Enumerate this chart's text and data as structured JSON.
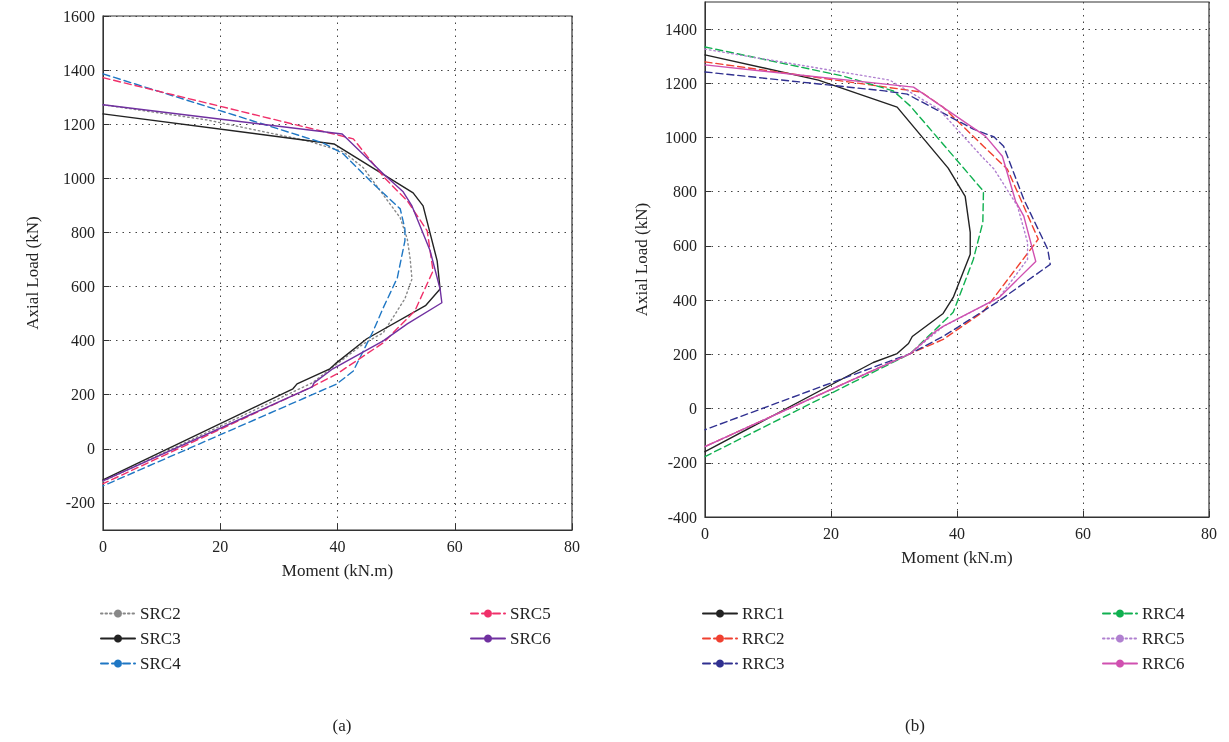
{
  "chart_data": [
    {
      "type": "line",
      "xlabel": "Moment (kN.m)",
      "ylabel": "Axial Load (kN)",
      "xlim": [
        0,
        80
      ],
      "xticks": [
        0,
        20,
        40,
        60,
        80
      ],
      "ylim": [
        -300,
        1600
      ],
      "yticks": [
        -200,
        0,
        200,
        400,
        600,
        800,
        1000,
        1200,
        1400,
        1600
      ],
      "grid": true,
      "legend": "bottom",
      "marker": "none",
      "annotations": [
        "(a)"
      ],
      "series": [
        {
          "name": "SRC2",
          "color": "#888888",
          "line_style": "dotted",
          "x": [
            0,
            17.7,
            34.8,
            41,
            44.4,
            50.7,
            51.9,
            52.4,
            52.7,
            51.5,
            47.8,
            44.4,
            35.7,
            0
          ],
          "values": [
            1272,
            1216,
            1139,
            1098,
            1039,
            854,
            776,
            702,
            628,
            555,
            429,
            388,
            244,
            -120
          ]
        },
        {
          "name": "SRC3",
          "color": "#222222",
          "line_style": "solid",
          "x": [
            0,
            39.4,
            52.9,
            54.6,
            57,
            57.5,
            55,
            45,
            39.6,
            38.7,
            33.1,
            32.4,
            0
          ],
          "values": [
            1238,
            1127,
            946,
            898,
            695,
            591,
            529,
            407,
            314,
            296,
            240,
            222,
            -115
          ]
        },
        {
          "name": "SRC4",
          "color": "#1f77c4",
          "line_style": "dashed",
          "x": [
            0,
            37.5,
            41,
            46.1,
            50.7,
            51.5,
            51.5,
            50.2,
            47.8,
            46.1,
            42.7,
            39.9,
            0
          ],
          "values": [
            1386,
            1131,
            1090,
            980,
            887,
            813,
            769,
            632,
            521,
            436,
            288,
            240,
            -137
          ]
        },
        {
          "name": "SRC5",
          "color": "#f0306a",
          "line_style": "dashed",
          "x": [
            0,
            42.7,
            48,
            51.9,
            55.3,
            56.3,
            53.2,
            47.8,
            39.9,
            35.3,
            0
          ],
          "values": [
            1372,
            1146,
            1002,
            917,
            806,
            658,
            510,
            392,
            277,
            226,
            -129
          ]
        },
        {
          "name": "SRC6",
          "color": "#7030a0",
          "line_style": "solid",
          "x": [
            0,
            40.8,
            47.8,
            51.2,
            52.7,
            55.8,
            57.5,
            57.8,
            51.9,
            47.8,
            39.2,
            36,
            35.7,
            0
          ],
          "values": [
            1272,
            1164,
            1017,
            950,
            898,
            732,
            591,
            540,
            462,
            399,
            296,
            244,
            229,
            -118
          ]
        }
      ]
    },
    {
      "type": "line",
      "xlabel": "Moment (kN.m)",
      "ylabel": "Axial Load (kN)",
      "xlim": [
        0,
        80
      ],
      "xticks": [
        0,
        20,
        40,
        60,
        80
      ],
      "ylim": [
        -400,
        1500
      ],
      "yticks": [
        -400,
        -200,
        0,
        200,
        400,
        600,
        800,
        1000,
        1200,
        1400
      ],
      "grid": true,
      "legend": "bottom",
      "marker": "none",
      "annotations": [
        "(b)"
      ],
      "series": [
        {
          "name": "RRC1",
          "color": "#222222",
          "line_style": "solid",
          "x": [
            0,
            18,
            30.5,
            38.6,
            41.3,
            42.1,
            42.1,
            39.4,
            37.8,
            32.9,
            32.3,
            30.5,
            26.7,
            0
          ],
          "values": [
            1305,
            1212,
            1112,
            887,
            783,
            650,
            569,
            410,
            351,
            266,
            240,
            203,
            170,
            -159
          ]
        },
        {
          "name": "RRC2",
          "color": "#f04030",
          "line_style": "dashed",
          "x": [
            0,
            34.3,
            37.8,
            44.2,
            48,
            52.9,
            50.1,
            44.2,
            37.8,
            32.6,
            0
          ],
          "values": [
            1279,
            1168,
            1112,
            968,
            883,
            625,
            539,
            358,
            255,
            203,
            -140
          ]
        },
        {
          "name": "RRC3",
          "color": "#303090",
          "line_style": "dashed",
          "x": [
            0,
            28.5,
            32.1,
            42.6,
            45.9,
            47.4,
            50.6,
            54.4,
            54.8,
            46.6,
            37.8,
            32.6,
            0
          ],
          "values": [
            1242,
            1172,
            1160,
            1031,
            1002,
            968,
            772,
            588,
            532,
            396,
            266,
            203,
            -78
          ]
        },
        {
          "name": "RRC4",
          "color": "#10b050",
          "line_style": "dashed",
          "x": [
            0,
            21.9,
            29.9,
            32.6,
            44.2,
            44.1,
            42.6,
            39.4,
            32.6,
            0
          ],
          "values": [
            1334,
            1227,
            1172,
            1116,
            802,
            687,
            551,
            355,
            203,
            -177
          ]
        },
        {
          "name": "RRC5",
          "color": "#b080d0",
          "line_style": "dotted",
          "x": [
            0,
            29.3,
            37.1,
            43.9,
            45.9,
            49.6,
            51.2,
            51.2,
            46.7,
            37.8,
            32.6,
            0
          ],
          "values": [
            1326,
            1212,
            1105,
            931,
            883,
            747,
            613,
            551,
            410,
            303,
            203,
            -140
          ]
        },
        {
          "name": "RRC6",
          "color": "#d050b0",
          "line_style": "solid",
          "x": [
            0,
            33.1,
            44.5,
            47.2,
            49.3,
            50.6,
            52.5,
            46.7,
            37.8,
            36.6,
            32.6,
            0
          ],
          "values": [
            1268,
            1186,
            1005,
            931,
            765,
            710,
            543,
            410,
            303,
            285,
            203,
            -140
          ]
        }
      ]
    }
  ]
}
